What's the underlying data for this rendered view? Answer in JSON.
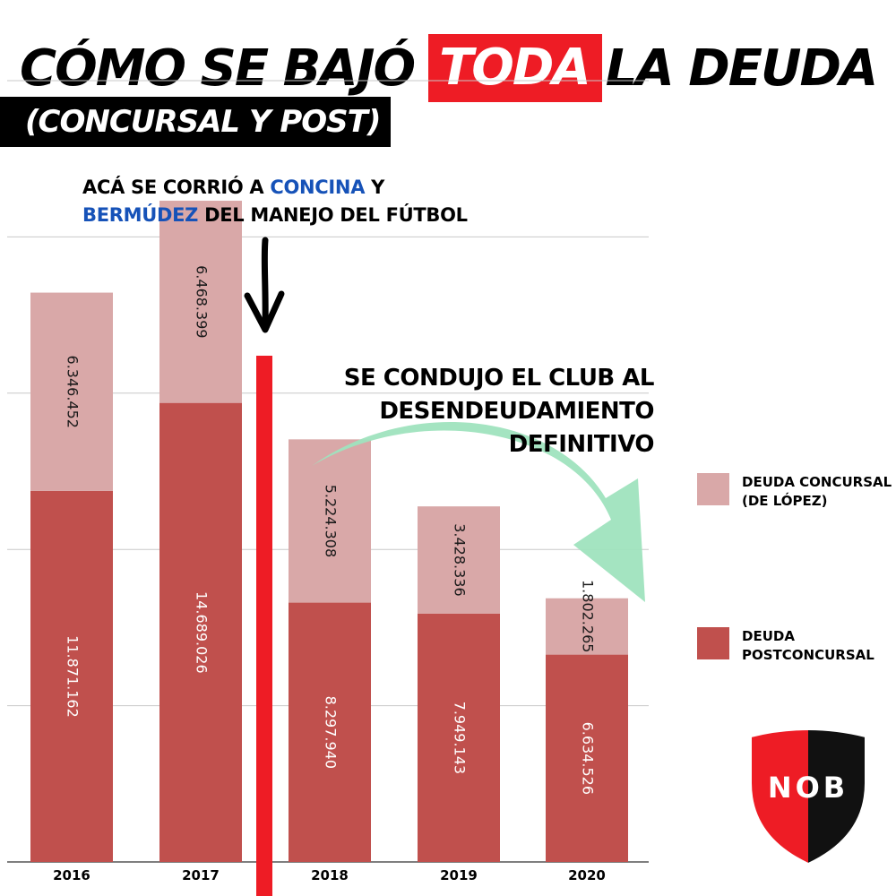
{
  "title": {
    "part1": "CÓMO SE BAJÓ",
    "highlight": "TODA",
    "part2": "LA DEUDA",
    "subtitle": "(CONCURSAL Y POST)"
  },
  "annotations": {
    "top_prefix": "ACÁ SE CORRIÓ A ",
    "top_name1": "CONCINA",
    "top_connector": " Y",
    "top_name2": "BERMÚDEZ",
    "top_suffix": " DEL MANEJO DEL FÚTBOL",
    "right_line1": "SE CONDUJO EL CLUB AL",
    "right_line2": "DESENDEUDAMIENTO",
    "right_line3": "DEFINITIVO"
  },
  "legend": [
    {
      "label": "DEUDA CONCURSAL\n(DE LÓPEZ)",
      "color": "#d9a8a8"
    },
    {
      "label": "DEUDA\nPOSTCONCURSAL",
      "color": "#c0504d"
    }
  ],
  "logo": {
    "text": "NOB",
    "colors": [
      "#ee1c25",
      "#111111"
    ]
  },
  "colors": {
    "accent_red": "#ee1c25",
    "arrow_green": "#9fe3be",
    "highlight_blue": "#1652b8"
  },
  "chart_data": {
    "type": "bar",
    "stacked": true,
    "categories": [
      "2016",
      "2017",
      "2018",
      "2019",
      "2020"
    ],
    "series": [
      {
        "name": "DEUDA POSTCONCURSAL",
        "color": "#c0504d",
        "values": [
          11871162,
          14689026,
          8297940,
          7949143,
          6634526
        ],
        "labels": [
          "11.871.162",
          "14.689.026",
          "8.297.940",
          "7.949.143",
          "6.634.526"
        ]
      },
      {
        "name": "DEUDA CONCURSAL (DE LÓPEZ)",
        "color": "#d9a8a8",
        "values": [
          6346452,
          6468399,
          5224308,
          3428336,
          1802265
        ],
        "labels": [
          "6.346.452",
          "6.468.399",
          "5.224.308",
          "3.428.336",
          "1.802.265"
        ]
      }
    ],
    "ylim": [
      0,
      25000000
    ],
    "grid": true,
    "legend_position": "right"
  }
}
